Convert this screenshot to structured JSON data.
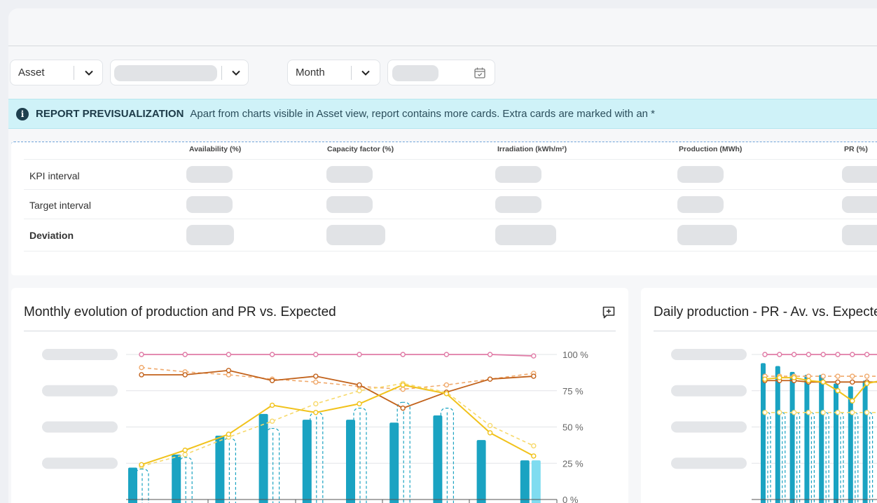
{
  "filters": {
    "view_select": {
      "label": "Asset"
    },
    "period_select": {
      "label": "Month"
    }
  },
  "icons": {
    "calendar": "calendar-icon",
    "info": "info-icon",
    "comment": "add-comment-icon",
    "chevron": "chevron-down-icon"
  },
  "banner": {
    "title": "REPORT PREVISUALIZATION",
    "message": "Apart from charts visible in Asset view, report contains more cards. Extra cards are marked with an *",
    "color": "#cff2f8"
  },
  "kpi_table": {
    "columns": [
      "Availability (%)",
      "Capacity factor (%)",
      "Irradiation (kWh/m²)",
      "Production (MWh)",
      "PR (%)"
    ],
    "rows": [
      {
        "label": "KPI interval"
      },
      {
        "label": "Target interval"
      },
      {
        "label": "Deviation"
      }
    ]
  },
  "cards": {
    "monthly": {
      "title": "Monthly evolution of production and PR vs. Expected"
    },
    "daily": {
      "title": "Daily production - PR - Av. vs. Expected"
    }
  },
  "chart_data": [
    {
      "type": "bar",
      "title": "Monthly evolution of production and PR vs. Expected",
      "y2_ticks": [
        "100 %",
        "75 %",
        "50 %",
        "25 %",
        "0 %"
      ],
      "y2lim": [
        0,
        100
      ],
      "colors": {
        "production": "#1aa3c2",
        "expected": "#1aa3c2",
        "availability": "#e07ba6",
        "pr": "#c2621b",
        "pr_expected": "#f0a96b",
        "irradiation": "#f1c21b",
        "irradiation_expected": "#f7d96b",
        "last_bar": "#7fdcf0"
      },
      "series": [
        {
          "name": "production",
          "kind": "bar",
          "values": [
            22,
            31,
            44,
            59,
            55,
            55,
            53,
            58,
            41,
            27
          ]
        },
        {
          "name": "expected",
          "kind": "bar-dashed",
          "values": [
            21,
            29,
            42,
            49,
            60,
            63,
            67,
            63,
            0,
            0
          ]
        },
        {
          "name": "availability",
          "kind": "line",
          "values": [
            100,
            100,
            100,
            100,
            100,
            100,
            100,
            100,
            100,
            99
          ]
        },
        {
          "name": "pr",
          "kind": "line",
          "values": [
            86,
            86,
            89,
            82,
            85,
            79,
            63,
            74,
            83,
            85
          ]
        },
        {
          "name": "pr_expected",
          "kind": "line-dashed",
          "values": [
            91,
            88,
            86,
            83,
            81,
            78,
            76,
            79,
            83,
            87
          ]
        },
        {
          "name": "irradiation",
          "kind": "line",
          "values": [
            24,
            34,
            45,
            65,
            60,
            66,
            79,
            73,
            46,
            30
          ]
        },
        {
          "name": "irradiation_expected",
          "kind": "line-dashed",
          "values": [
            23,
            31,
            43,
            54,
            66,
            75,
            80,
            74,
            51,
            37
          ]
        }
      ],
      "extra_bar": 27
    },
    {
      "type": "bar",
      "title": "Daily production - PR - Av. vs. Expected",
      "colors": {
        "production": "#1aa3c2",
        "availability": "#e07ba6",
        "pr": "#c2621b",
        "pr_expected": "#f0a96b",
        "irradiation": "#f1c21b",
        "irradiation_expected": "#f7d96b"
      },
      "series": [
        {
          "name": "production",
          "kind": "bar",
          "values": [
            94,
            92,
            88,
            86,
            86,
            80,
            78,
            82,
            86,
            82
          ]
        },
        {
          "name": "expected",
          "kind": "bar-dashed",
          "values": [
            60,
            60,
            60,
            60,
            60,
            60,
            60,
            60,
            60,
            60
          ]
        },
        {
          "name": "availability",
          "kind": "line",
          "values": [
            100,
            100,
            100,
            100,
            100,
            100,
            100,
            100,
            100,
            100
          ]
        },
        {
          "name": "pr",
          "kind": "line",
          "values": [
            82,
            82,
            82,
            81,
            81,
            81,
            81,
            81,
            81,
            81
          ]
        },
        {
          "name": "pr_expected",
          "kind": "line-dashed",
          "values": [
            85,
            85,
            85,
            85,
            85,
            85,
            85,
            85,
            85,
            85
          ]
        },
        {
          "name": "irradiation",
          "kind": "line",
          "values": [
            83,
            84,
            84,
            82,
            81,
            75,
            68,
            80,
            82,
            83
          ]
        },
        {
          "name": "irradiation_expected",
          "kind": "line-dashed",
          "values": [
            60,
            60,
            60,
            60,
            60,
            60,
            60,
            60,
            60,
            60
          ]
        }
      ]
    }
  ]
}
